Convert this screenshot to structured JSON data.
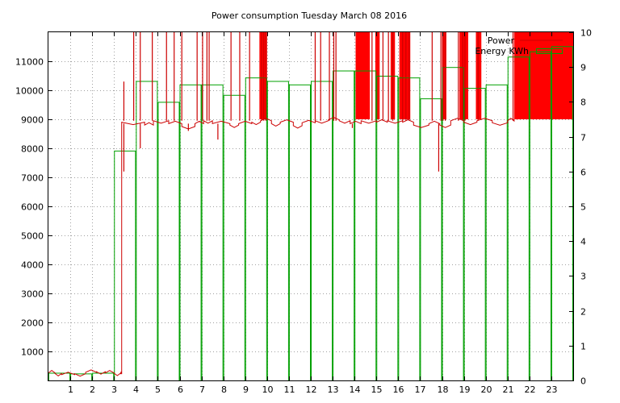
{
  "chart_data": {
    "type": "bar",
    "title": "Power consumption Tuesday March 08 2016",
    "xlabel": "",
    "ylabel": "",
    "xlim": [
      0,
      24
    ],
    "ylim": [
      0,
      12000
    ],
    "y2lim": [
      0,
      10
    ],
    "x_ticks": [
      1,
      2,
      3,
      4,
      5,
      6,
      7,
      8,
      9,
      10,
      11,
      12,
      13,
      14,
      15,
      16,
      17,
      18,
      19,
      20,
      21,
      22,
      23
    ],
    "y_ticks": [
      1000,
      2000,
      3000,
      4000,
      5000,
      6000,
      7000,
      8000,
      9000,
      10000,
      11000
    ],
    "y2_ticks": [
      0,
      1,
      2,
      3,
      4,
      5,
      6,
      7,
      8,
      9,
      10
    ],
    "legend_position": "top-right",
    "colors": {
      "power": "#cc0000",
      "energy": "#00a000",
      "spike_fill": "#ff0000"
    },
    "series": [
      {
        "name": "Power",
        "axis": "y",
        "style": "step-line",
        "levels": [
          [
            0.0,
            260
          ],
          [
            0.3,
            240
          ],
          [
            0.6,
            200
          ],
          [
            1.2,
            230
          ],
          [
            1.7,
            280
          ],
          [
            2.2,
            300
          ],
          [
            2.6,
            260
          ],
          [
            3.0,
            250
          ],
          [
            3.3,
            220
          ],
          [
            3.35,
            8900
          ],
          [
            4.4,
            8800
          ],
          [
            4.8,
            8950
          ],
          [
            5.5,
            8850
          ],
          [
            6.1,
            8750
          ],
          [
            6.7,
            8850
          ],
          [
            7.1,
            8950
          ],
          [
            7.5,
            8850
          ],
          [
            8.3,
            8800
          ],
          [
            8.7,
            8850
          ],
          [
            9.3,
            8900
          ],
          [
            9.7,
            8950
          ],
          [
            10.2,
            8850
          ],
          [
            10.6,
            8900
          ],
          [
            11.2,
            8780
          ],
          [
            11.6,
            8880
          ],
          [
            12.2,
            8950
          ],
          [
            12.8,
            8980
          ],
          [
            13.3,
            8950
          ],
          [
            13.8,
            8850
          ],
          [
            14.3,
            8950
          ],
          [
            15.0,
            8900
          ],
          [
            15.5,
            8950
          ],
          [
            16.2,
            8900
          ],
          [
            16.7,
            8800
          ],
          [
            17.4,
            8850
          ],
          [
            17.9,
            8800
          ],
          [
            18.4,
            8950
          ],
          [
            19.0,
            8900
          ],
          [
            19.6,
            8950
          ],
          [
            20.3,
            8880
          ],
          [
            21.0,
            8950
          ],
          [
            21.3,
            9000
          ]
        ],
        "spikes": [
          [
            3.45,
            10300
          ],
          [
            3.45,
            7200
          ],
          [
            3.9,
            12000
          ],
          [
            4.2,
            12000
          ],
          [
            4.2,
            8000
          ],
          [
            4.75,
            12000
          ],
          [
            5.4,
            12000
          ],
          [
            5.75,
            12000
          ],
          [
            6.1,
            12000
          ],
          [
            6.4,
            8600
          ],
          [
            6.8,
            12000
          ],
          [
            7.05,
            12000
          ],
          [
            7.25,
            12000
          ],
          [
            7.35,
            12000
          ],
          [
            7.75,
            8300
          ],
          [
            8.35,
            12000
          ],
          [
            8.75,
            12000
          ],
          [
            9.2,
            12000
          ],
          [
            9.75,
            12000
          ],
          [
            9.85,
            12000
          ],
          [
            9.95,
            12000
          ],
          [
            12.2,
            12000
          ],
          [
            12.45,
            12000
          ],
          [
            12.85,
            12000
          ],
          [
            13.05,
            12000
          ],
          [
            13.15,
            12000
          ],
          [
            13.9,
            8700
          ],
          [
            14.8,
            12000
          ],
          [
            15.3,
            12000
          ],
          [
            15.55,
            12000
          ],
          [
            15.75,
            12000
          ],
          [
            16.2,
            12000
          ],
          [
            16.35,
            12000
          ],
          [
            16.5,
            12000
          ],
          [
            17.55,
            12000
          ],
          [
            17.85,
            7200
          ],
          [
            17.95,
            12000
          ],
          [
            18.05,
            12000
          ],
          [
            18.15,
            12000
          ],
          [
            18.75,
            12000
          ],
          [
            18.95,
            12000
          ],
          [
            19.05,
            12000
          ],
          [
            19.65,
            12000
          ],
          [
            21.25,
            12000
          ]
        ],
        "blocks": [
          [
            9.65,
            10.0
          ],
          [
            14.05,
            14.7
          ],
          [
            14.95,
            15.15
          ],
          [
            15.65,
            15.85
          ],
          [
            16.05,
            16.55
          ],
          [
            18.0,
            18.2
          ],
          [
            18.8,
            19.2
          ],
          [
            19.55,
            19.8
          ],
          [
            21.3,
            24.0
          ]
        ]
      },
      {
        "name": "Energy KWh",
        "axis": "y2",
        "style": "boxes",
        "x": [
          0,
          1,
          2,
          3,
          4,
          5,
          6,
          7,
          8,
          9,
          10,
          11,
          12,
          13,
          14,
          15,
          16,
          17,
          18,
          19,
          20,
          21,
          22,
          23
        ],
        "values": [
          0.22,
          0.2,
          0.22,
          6.6,
          8.6,
          8.0,
          8.5,
          8.5,
          8.2,
          8.7,
          8.6,
          8.5,
          8.6,
          8.9,
          8.9,
          8.75,
          8.7,
          8.1,
          9.0,
          8.4,
          8.5,
          9.3,
          9.45,
          9.6
        ]
      }
    ]
  }
}
